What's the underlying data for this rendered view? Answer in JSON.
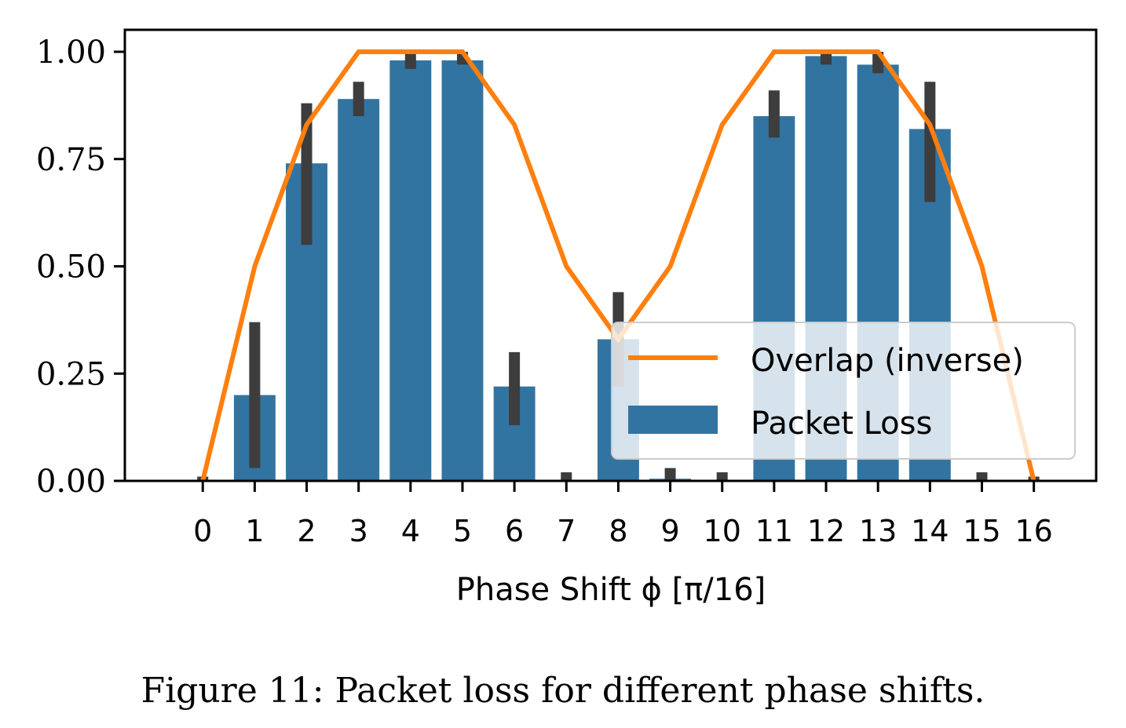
{
  "chart_data": {
    "type": "bar",
    "xlabel": "Phase Shift ϕ [π/16]",
    "ylabel": "",
    "ylim": [
      0,
      1.05
    ],
    "xlim": [
      -1.5,
      17.2
    ],
    "yticks": [
      0,
      0.25,
      0.5,
      0.75,
      1.0
    ],
    "ytick_labels": [
      "0.00",
      "0.25",
      "0.50",
      "0.75",
      "1.00"
    ],
    "categories": [
      "0",
      "1",
      "2",
      "3",
      "4",
      "5",
      "6",
      "7",
      "8",
      "9",
      "10",
      "11",
      "12",
      "13",
      "14",
      "15",
      "16"
    ],
    "grid": false,
    "legend_position": "lower-right",
    "series": [
      {
        "name": "Overlap (inverse)",
        "kind": "line",
        "color": "#ff7f0e",
        "values": [
          0,
          0.5,
          0.83,
          1.0,
          1.0,
          1.0,
          0.83,
          0.5,
          0.33,
          0.5,
          0.83,
          1.0,
          1.0,
          1.0,
          0.83,
          0.5,
          0
        ]
      },
      {
        "name": "Packet Loss",
        "kind": "bar",
        "color": "#3274a1",
        "values": [
          0,
          0.2,
          0.74,
          0.89,
          0.98,
          0.98,
          0.22,
          0,
          0.33,
          0.005,
          0,
          0.85,
          0.99,
          0.97,
          0.82,
          0,
          0
        ],
        "error_low": [
          0,
          0.03,
          0.55,
          0.85,
          0.96,
          0.97,
          0.13,
          0,
          0.22,
          0,
          0,
          0.8,
          0.97,
          0.95,
          0.65,
          0,
          0
        ],
        "error_high": [
          0.01,
          0.37,
          0.88,
          0.93,
          1.0,
          1.0,
          0.3,
          0.02,
          0.44,
          0.03,
          0.02,
          0.91,
          1.0,
          1.0,
          0.93,
          0.02,
          0.01
        ],
        "error_color": "#3d3d3d"
      }
    ]
  },
  "caption": "Figure 11: Packet loss for different phase shifts."
}
